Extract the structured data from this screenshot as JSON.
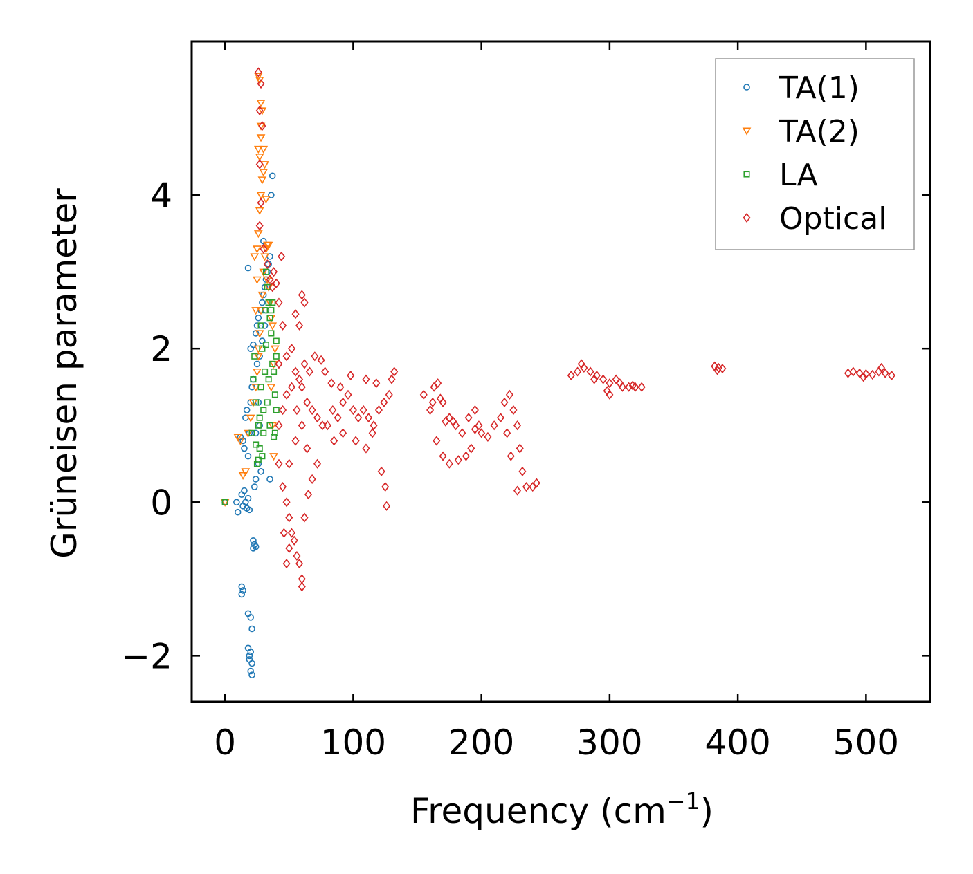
{
  "chart_data": {
    "type": "scatter",
    "xlabel": "Frequency (cm",
    "xlabel_sup": "−1",
    "xlabel_suffix": ")",
    "ylabel": "Grüneisen parameter",
    "xlim": [
      -26,
      550
    ],
    "ylim": [
      -2.6,
      6.0
    ],
    "xticks": [
      0,
      100,
      200,
      300,
      400,
      500
    ],
    "xtick_labels": [
      "0",
      "100",
      "200",
      "300",
      "400",
      "500"
    ],
    "yticks": [
      -2,
      0,
      2,
      4
    ],
    "ytick_labels": [
      "−2",
      "0",
      "2",
      "4"
    ],
    "legend_position": "top-right",
    "series": [
      {
        "name": "TA(1)",
        "marker": "circle",
        "color": "#1f77b4",
        "points": [
          [
            0,
            0
          ],
          [
            9,
            0
          ],
          [
            10,
            -0.13
          ],
          [
            13,
            0.1
          ],
          [
            14,
            -0.05
          ],
          [
            15,
            0.15
          ],
          [
            16,
            0
          ],
          [
            17,
            -0.08
          ],
          [
            18,
            0.05
          ],
          [
            19,
            -0.1
          ],
          [
            12,
            0.85
          ],
          [
            14,
            0.8
          ],
          [
            15,
            0.7
          ],
          [
            16,
            1.1
          ],
          [
            17,
            1.2
          ],
          [
            18,
            0.6
          ],
          [
            19,
            0.9
          ],
          [
            20,
            1.3
          ],
          [
            21,
            1.5
          ],
          [
            22,
            1.6
          ],
          [
            20,
            2.0
          ],
          [
            22,
            2.05
          ],
          [
            24,
            2.2
          ],
          [
            25,
            2.3
          ],
          [
            26,
            2.4
          ],
          [
            28,
            2.5
          ],
          [
            29,
            2.6
          ],
          [
            30,
            2.7
          ],
          [
            31,
            2.8
          ],
          [
            32,
            2.9
          ],
          [
            33,
            3.0
          ],
          [
            34,
            3.1
          ],
          [
            30,
            3.4
          ],
          [
            35,
            3.2
          ],
          [
            18,
            3.05
          ],
          [
            36,
            4.0
          ],
          [
            37,
            4.25
          ],
          [
            25,
            1.8
          ],
          [
            27,
            1.9
          ],
          [
            29,
            2.1
          ],
          [
            23,
            0.2
          ],
          [
            24,
            0.3
          ],
          [
            26,
            0.5
          ],
          [
            28,
            0.4
          ],
          [
            35,
            0.3
          ],
          [
            22,
            -0.5
          ],
          [
            23,
            -0.55
          ],
          [
            24,
            -0.58
          ],
          [
            22,
            -0.6
          ],
          [
            13,
            -1.1
          ],
          [
            14,
            -1.15
          ],
          [
            13,
            -1.2
          ],
          [
            18,
            -1.45
          ],
          [
            20,
            -1.5
          ],
          [
            21,
            -1.65
          ],
          [
            18,
            -1.9
          ],
          [
            19,
            -2.0
          ],
          [
            20,
            -1.95
          ],
          [
            21,
            -2.1
          ],
          [
            20,
            -2.2
          ],
          [
            21,
            -2.25
          ],
          [
            19,
            -2.05
          ],
          [
            31,
            2.3
          ],
          [
            32,
            2.5
          ],
          [
            27,
            1.0
          ],
          [
            26,
            1.3
          ],
          [
            24,
            0.9
          ]
        ]
      },
      {
        "name": "TA(2)",
        "marker": "triangle-down",
        "color": "#ff7f0e",
        "points": [
          [
            0,
            0
          ],
          [
            10,
            0.85
          ],
          [
            12,
            0.8
          ],
          [
            14,
            0.35
          ],
          [
            16,
            0.4
          ],
          [
            18,
            0.9
          ],
          [
            20,
            1.1
          ],
          [
            22,
            1.3
          ],
          [
            24,
            1.5
          ],
          [
            25,
            1.7
          ],
          [
            26,
            1.9
          ],
          [
            27,
            2.2
          ],
          [
            28,
            2.5
          ],
          [
            29,
            2.7
          ],
          [
            30,
            3.0
          ],
          [
            31,
            3.2
          ],
          [
            32,
            3.3
          ],
          [
            33,
            3.35
          ],
          [
            34,
            3.35
          ],
          [
            35,
            2.6
          ],
          [
            36,
            2.4
          ],
          [
            37,
            2.3
          ],
          [
            38,
            1.8
          ],
          [
            39,
            2.0
          ],
          [
            36,
            1.5
          ],
          [
            37,
            1.0
          ],
          [
            38,
            0.6
          ],
          [
            24,
            2.5
          ],
          [
            23,
            3.2
          ],
          [
            25,
            3.3
          ],
          [
            26,
            3.5
          ],
          [
            27,
            3.8
          ],
          [
            28,
            4.0
          ],
          [
            29,
            4.2
          ],
          [
            30,
            4.3
          ],
          [
            27,
            4.5
          ],
          [
            26,
            4.6
          ],
          [
            28,
            4.9
          ],
          [
            29,
            5.1
          ],
          [
            28,
            5.2
          ],
          [
            27,
            5.5
          ],
          [
            26,
            5.55
          ],
          [
            28,
            4.75
          ],
          [
            30,
            4.6
          ],
          [
            31,
            4.4
          ],
          [
            32,
            3.95
          ],
          [
            33,
            2.9
          ],
          [
            34,
            2.8
          ],
          [
            25,
            2.9
          ],
          [
            26,
            2.0
          ]
        ]
      },
      {
        "name": "LA",
        "marker": "square",
        "color": "#2ca02c",
        "points": [
          [
            0,
            0
          ],
          [
            21,
            0.9
          ],
          [
            22,
            1.6
          ],
          [
            23,
            1.9
          ],
          [
            24,
            1.3
          ],
          [
            25,
            0.5
          ],
          [
            26,
            1.0
          ],
          [
            27,
            0.7
          ],
          [
            28,
            1.5
          ],
          [
            29,
            2.0
          ],
          [
            30,
            1.2
          ],
          [
            31,
            2.5
          ],
          [
            32,
            3.0
          ],
          [
            33,
            2.8
          ],
          [
            34,
            2.6
          ],
          [
            35,
            2.4
          ],
          [
            36,
            2.2
          ],
          [
            37,
            1.8
          ],
          [
            38,
            1.7
          ],
          [
            39,
            1.4
          ],
          [
            40,
            2.1
          ],
          [
            40,
            1.9
          ],
          [
            38,
            0.85
          ],
          [
            35,
            1.0
          ],
          [
            33,
            1.3
          ],
          [
            30,
            0.9
          ],
          [
            29,
            0.6
          ],
          [
            36,
            2.5
          ],
          [
            37,
            2.6
          ],
          [
            28,
            2.3
          ],
          [
            31,
            1.7
          ],
          [
            32,
            2.05
          ],
          [
            34,
            1.6
          ],
          [
            39,
            0.9
          ],
          [
            40,
            1.2
          ],
          [
            27,
            1.1
          ],
          [
            26,
            0.55
          ],
          [
            24,
            0.75
          ]
        ]
      },
      {
        "name": "Optical",
        "marker": "diamond",
        "color": "#d62728",
        "points": [
          [
            26,
            5.6
          ],
          [
            28,
            5.45
          ],
          [
            27,
            5.1
          ],
          [
            29,
            4.9
          ],
          [
            27,
            4.4
          ],
          [
            28,
            3.9
          ],
          [
            27,
            3.6
          ],
          [
            30,
            3.3
          ],
          [
            33,
            3.1
          ],
          [
            35,
            2.9
          ],
          [
            37,
            2.8
          ],
          [
            44,
            3.2
          ],
          [
            55,
            2.45
          ],
          [
            58,
            2.3
          ],
          [
            60,
            2.7
          ],
          [
            62,
            2.6
          ],
          [
            38,
            3.0
          ],
          [
            40,
            2.85
          ],
          [
            42,
            2.6
          ],
          [
            45,
            2.3
          ],
          [
            48,
            1.9
          ],
          [
            52,
            2.0
          ],
          [
            55,
            1.7
          ],
          [
            58,
            1.6
          ],
          [
            60,
            1.5
          ],
          [
            64,
            1.3
          ],
          [
            68,
            1.2
          ],
          [
            72,
            1.1
          ],
          [
            76,
            1.0
          ],
          [
            80,
            1.0
          ],
          [
            84,
            1.2
          ],
          [
            88,
            1.1
          ],
          [
            92,
            1.3
          ],
          [
            96,
            1.4
          ],
          [
            100,
            1.2
          ],
          [
            104,
            1.1
          ],
          [
            108,
            1.2
          ],
          [
            112,
            1.1
          ],
          [
            116,
            1.0
          ],
          [
            120,
            1.2
          ],
          [
            124,
            1.3
          ],
          [
            128,
            1.4
          ],
          [
            130,
            1.6
          ],
          [
            132,
            1.7
          ],
          [
            125,
            0.2
          ],
          [
            122,
            0.4
          ],
          [
            126,
            -0.05
          ],
          [
            70,
            1.9
          ],
          [
            75,
            1.85
          ],
          [
            78,
            1.7
          ],
          [
            83,
            1.55
          ],
          [
            90,
            1.5
          ],
          [
            98,
            1.65
          ],
          [
            110,
            1.6
          ],
          [
            118,
            1.55
          ],
          [
            85,
            0.8
          ],
          [
            92,
            0.9
          ],
          [
            102,
            0.8
          ],
          [
            110,
            0.7
          ],
          [
            115,
            0.9
          ],
          [
            42,
            0.5
          ],
          [
            45,
            0.2
          ],
          [
            48,
            0.0
          ],
          [
            50,
            -0.2
          ],
          [
            52,
            -0.4
          ],
          [
            54,
            -0.5
          ],
          [
            56,
            -0.7
          ],
          [
            58,
            -0.8
          ],
          [
            60,
            -1.0
          ],
          [
            60,
            -1.1
          ],
          [
            48,
            -0.8
          ],
          [
            50,
            -0.6
          ],
          [
            46,
            -0.4
          ],
          [
            62,
            -0.2
          ],
          [
            65,
            0.1
          ],
          [
            68,
            0.3
          ],
          [
            72,
            0.5
          ],
          [
            50,
            0.5
          ],
          [
            55,
            0.8
          ],
          [
            60,
            1.0
          ],
          [
            64,
            0.7
          ],
          [
            52,
            1.5
          ],
          [
            56,
            1.2
          ],
          [
            62,
            1.8
          ],
          [
            66,
            1.7
          ],
          [
            42,
            1.0
          ],
          [
            45,
            1.2
          ],
          [
            48,
            1.4
          ],
          [
            42,
            1.8
          ],
          [
            155,
            1.4
          ],
          [
            160,
            1.2
          ],
          [
            163,
            1.5
          ],
          [
            166,
            1.55
          ],
          [
            170,
            1.3
          ],
          [
            175,
            1.1
          ],
          [
            180,
            1.0
          ],
          [
            165,
            0.8
          ],
          [
            170,
            0.6
          ],
          [
            175,
            0.5
          ],
          [
            182,
            0.55
          ],
          [
            188,
            0.6
          ],
          [
            185,
            0.9
          ],
          [
            190,
            1.1
          ],
          [
            195,
            1.2
          ],
          [
            198,
            1.0
          ],
          [
            200,
            0.9
          ],
          [
            205,
            0.85
          ],
          [
            210,
            1.0
          ],
          [
            215,
            1.1
          ],
          [
            218,
            1.3
          ],
          [
            222,
            1.4
          ],
          [
            225,
            1.2
          ],
          [
            228,
            1.0
          ],
          [
            230,
            0.7
          ],
          [
            232,
            0.4
          ],
          [
            235,
            0.2
          ],
          [
            240,
            0.2
          ],
          [
            243,
            0.25
          ],
          [
            228,
            0.15
          ],
          [
            162,
            1.3
          ],
          [
            168,
            1.35
          ],
          [
            172,
            1.05
          ],
          [
            178,
            1.05
          ],
          [
            192,
            0.7
          ],
          [
            195,
            0.95
          ],
          [
            220,
            0.9
          ],
          [
            223,
            0.6
          ],
          [
            275,
            1.7
          ],
          [
            280,
            1.75
          ],
          [
            285,
            1.7
          ],
          [
            290,
            1.65
          ],
          [
            295,
            1.6
          ],
          [
            300,
            1.55
          ],
          [
            305,
            1.6
          ],
          [
            310,
            1.5
          ],
          [
            315,
            1.5
          ],
          [
            320,
            1.5
          ],
          [
            325,
            1.5
          ],
          [
            278,
            1.8
          ],
          [
            288,
            1.6
          ],
          [
            298,
            1.45
          ],
          [
            300,
            1.4
          ],
          [
            308,
            1.55
          ],
          [
            318,
            1.52
          ],
          [
            270,
            1.65
          ],
          [
            382,
            1.77
          ],
          [
            385,
            1.75
          ],
          [
            388,
            1.74
          ],
          [
            384,
            1.72
          ],
          [
            490,
            1.7
          ],
          [
            495,
            1.68
          ],
          [
            500,
            1.67
          ],
          [
            505,
            1.66
          ],
          [
            510,
            1.7
          ],
          [
            515,
            1.68
          ],
          [
            520,
            1.65
          ],
          [
            486,
            1.68
          ],
          [
            498,
            1.63
          ],
          [
            512,
            1.75
          ]
        ]
      }
    ]
  }
}
